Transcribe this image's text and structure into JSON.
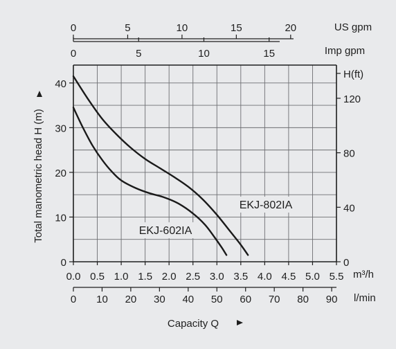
{
  "chart_data": {
    "type": "line",
    "xlabel": "Capacity Q",
    "ylabel": "Total manometric head H (m)",
    "x_unit": "m³/h",
    "xlim": [
      0,
      5.5
    ],
    "ylim": [
      0,
      44
    ],
    "x_ticks": [
      0.0,
      0.5,
      1.0,
      1.5,
      2.0,
      2.5,
      3.0,
      3.5,
      4.0,
      4.5,
      5.0,
      5.5
    ],
    "x_tick_labels": [
      "0.0",
      "0.5",
      "1.0",
      "1.5",
      "2.0",
      "2.5",
      "3.0",
      "3.5",
      "4.0",
      "4.5",
      "5.0",
      "5.5"
    ],
    "y_ticks": [
      0,
      10,
      20,
      30,
      40
    ],
    "y_tick_labels": [
      "0",
      "10",
      "20",
      "30",
      "40"
    ],
    "grid": true,
    "secondary_axes": {
      "lmin": {
        "unit": "l/min",
        "ticks": [
          0,
          10,
          20,
          30,
          40,
          50,
          60,
          70,
          80,
          90
        ],
        "labels": [
          "0",
          "10",
          "20",
          "30",
          "40",
          "50",
          "60",
          "70",
          "80",
          "90"
        ]
      },
      "imp_gpm": {
        "unit": "Imp gpm",
        "ticks": [
          0,
          5,
          10,
          15
        ],
        "labels": [
          "0",
          "5",
          "10",
          "15"
        ]
      },
      "us_gpm": {
        "unit": "US gpm",
        "ticks": [
          0,
          5,
          10,
          15,
          20
        ],
        "labels": [
          "0",
          "5",
          "10",
          "15",
          "20"
        ]
      },
      "h_ft": {
        "unit": "H(ft)",
        "ticks": [
          0,
          40,
          80,
          120
        ],
        "labels": [
          "0",
          "40",
          "80",
          "120"
        ]
      }
    },
    "series": [
      {
        "name": "EKJ-602IA",
        "x": [
          0.0,
          0.2,
          0.4,
          0.6,
          0.8,
          1.0,
          1.3,
          1.6,
          1.9,
          2.2,
          2.5,
          2.75,
          2.95,
          3.1,
          3.2
        ],
        "y": [
          34.5,
          30.0,
          26.0,
          22.8,
          20.2,
          18.2,
          16.5,
          15.3,
          14.4,
          13.0,
          10.8,
          8.3,
          5.5,
          3.2,
          1.5
        ]
      },
      {
        "name": "EKJ-802IA",
        "x": [
          0.0,
          0.3,
          0.6,
          0.9,
          1.2,
          1.5,
          1.8,
          2.1,
          2.4,
          2.7,
          3.0,
          3.3,
          3.5,
          3.65
        ],
        "y": [
          41.5,
          36.5,
          32.0,
          28.5,
          25.5,
          23.0,
          21.0,
          19.0,
          16.8,
          14.0,
          10.5,
          6.5,
          3.8,
          1.5
        ]
      }
    ]
  }
}
